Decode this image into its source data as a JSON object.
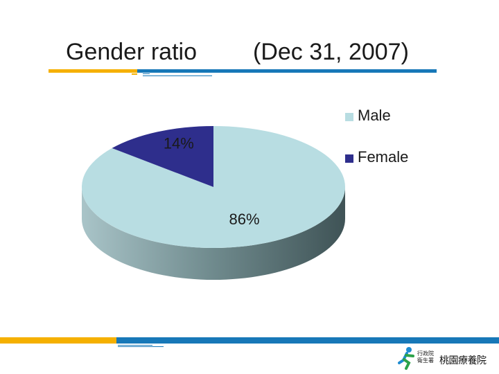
{
  "slide": {
    "title": "Gender ratio",
    "title_date": "(Dec 31, 2007)"
  },
  "chart_data": {
    "type": "pie",
    "style": "3d",
    "labels": [
      "Male",
      "Female"
    ],
    "values": [
      86,
      14
    ],
    "data_labels": [
      "86%",
      "14%"
    ],
    "colors": [
      "#b8dde2",
      "#2e2e8c"
    ],
    "legend_placement": "top-right"
  },
  "logo": {
    "org_text": "行政院衛生署",
    "hospital_name": "桃園療養院"
  },
  "colors": {
    "accent_yellow": "#f5b000",
    "accent_blue": "#1778b8"
  }
}
